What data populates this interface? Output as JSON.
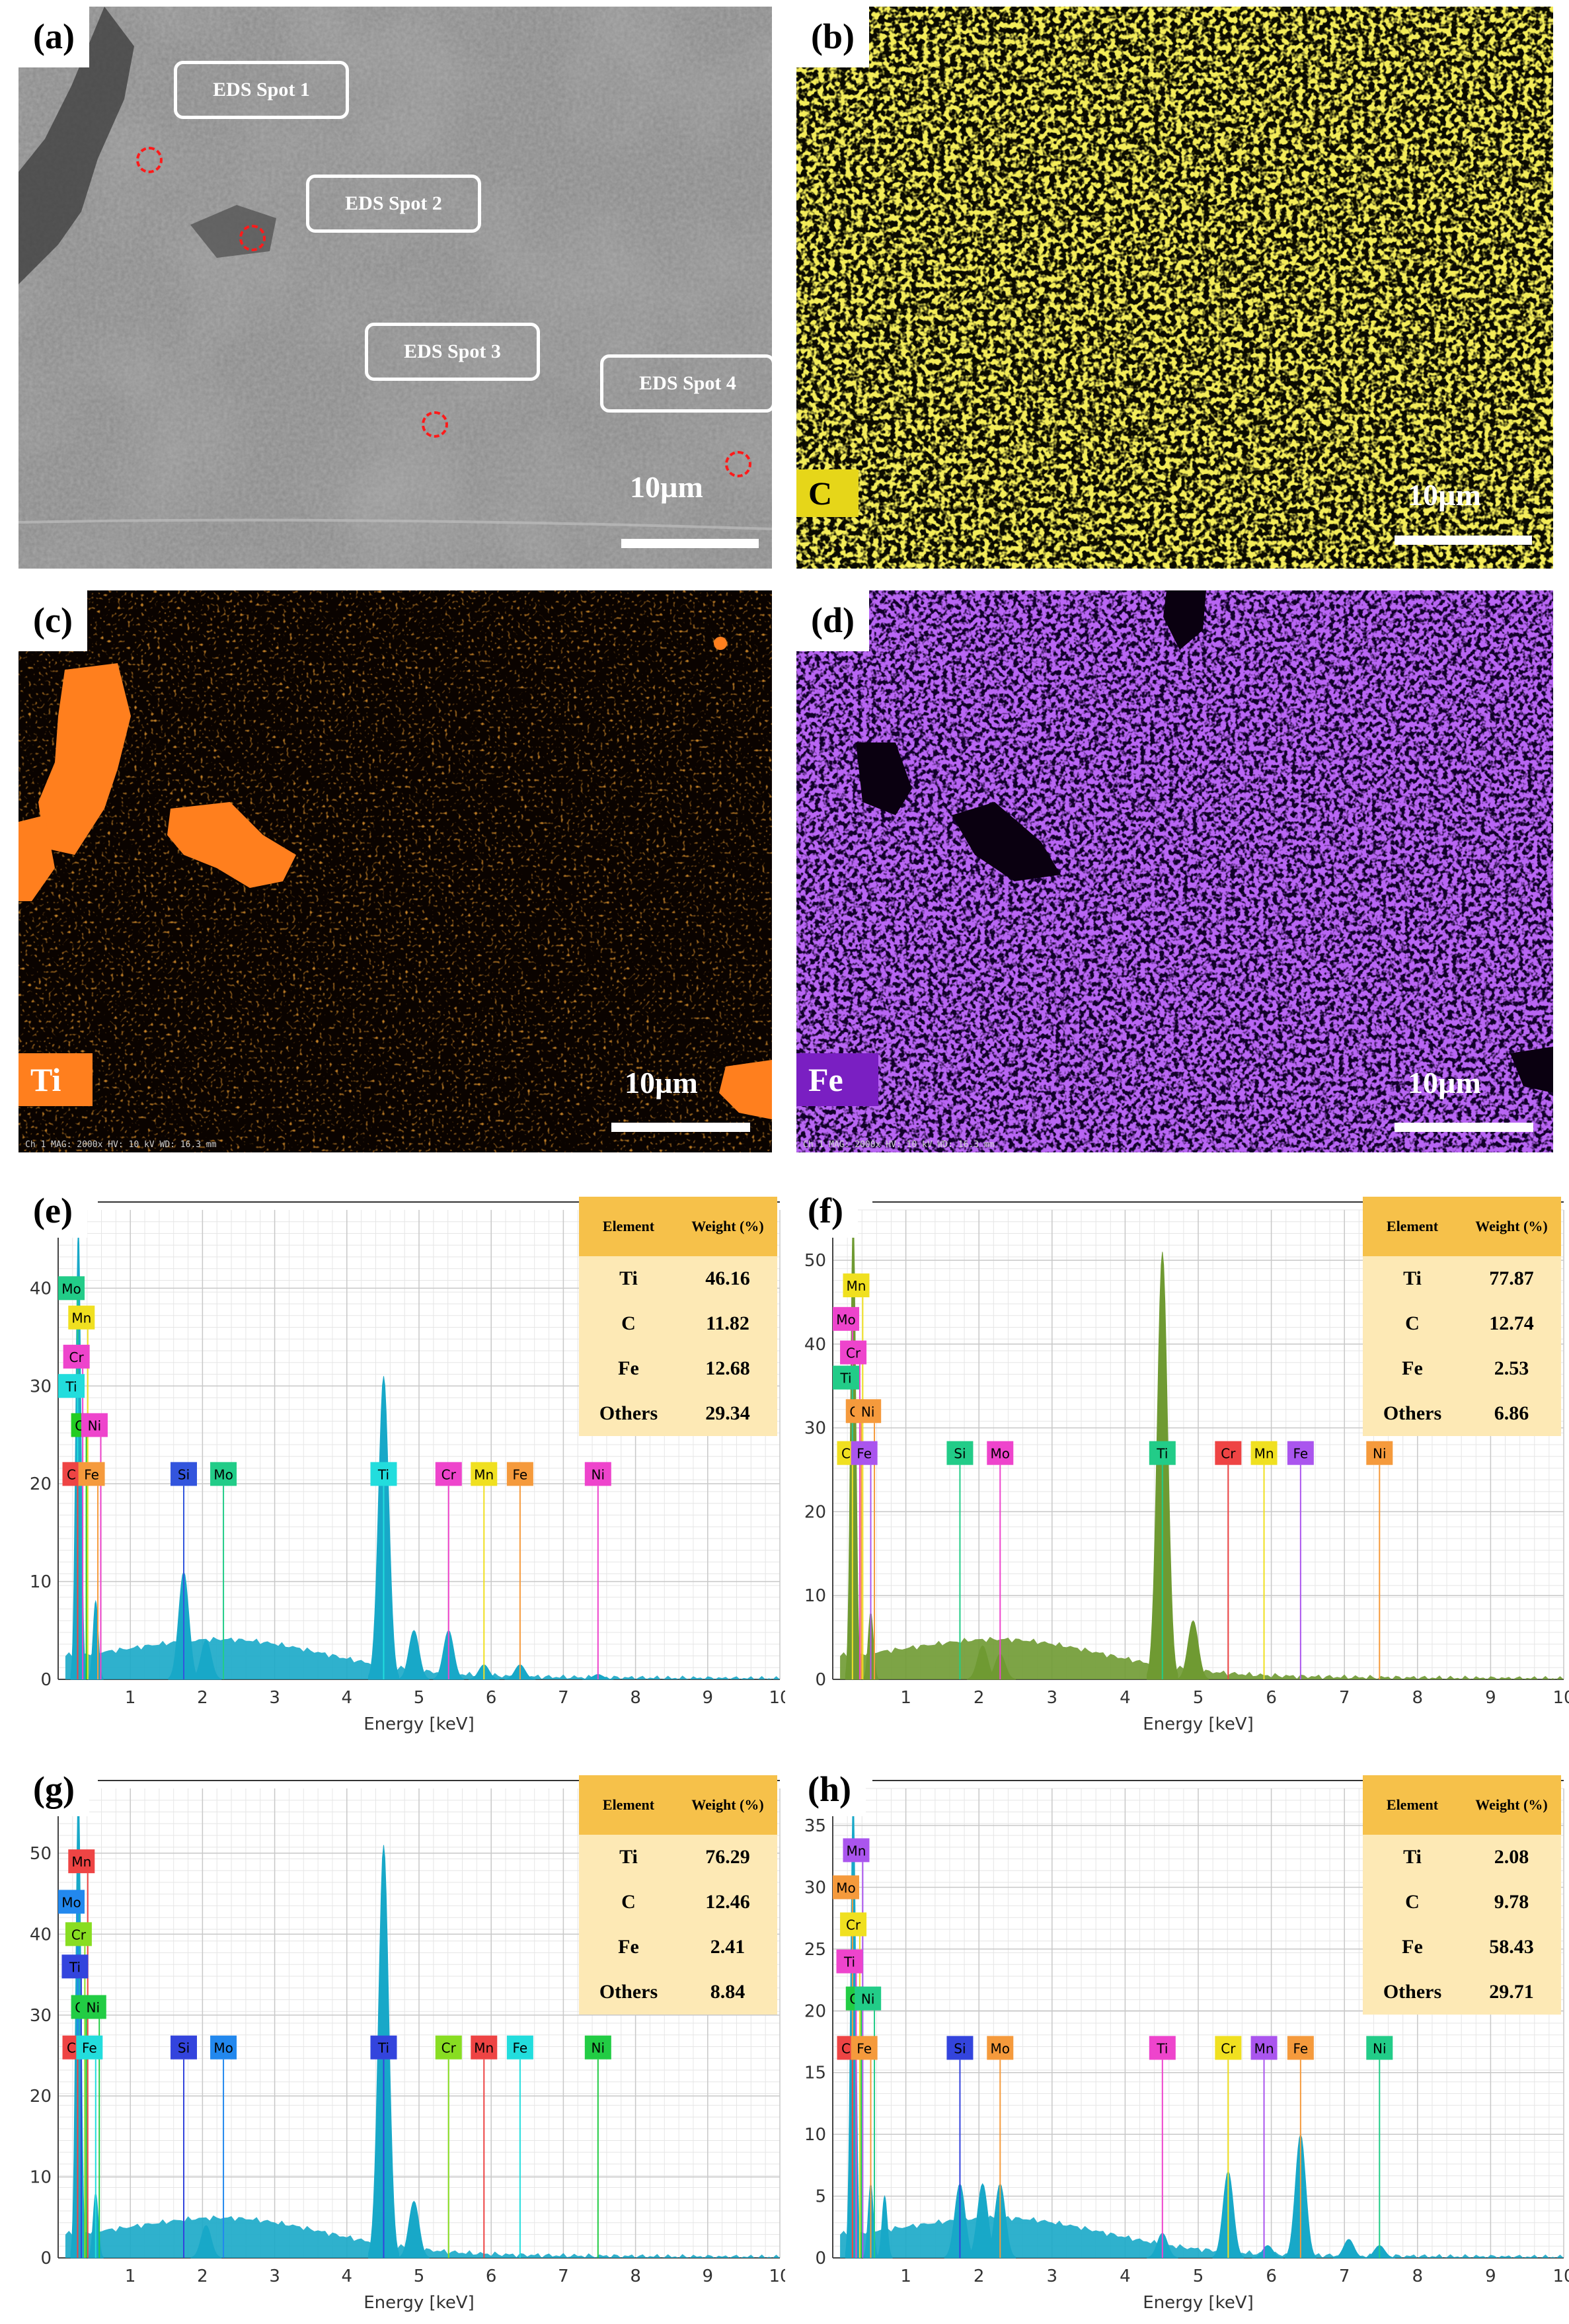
{
  "panels": {
    "a": {
      "label": "(a)",
      "scale_text": "10µm",
      "spots": [
        "EDS Spot 1",
        "EDS Spot 2",
        "EDS Spot 3",
        "EDS Spot 4"
      ]
    },
    "b": {
      "label": "(b)",
      "element": "C",
      "scale_text": "10µm",
      "map_color": "#e6d619",
      "tag_color": "#e6d619",
      "tag_text_color": "#000000"
    },
    "c": {
      "label": "(c)",
      "element": "Ti",
      "scale_text": "10µm",
      "map_color": "#ff7f1e",
      "tag_color": "#ff7f1e",
      "tag_text_color": "#ffffff",
      "status_bar": "Ch 1  MAG: 2000x  HV: 10 kV  WD: 16.3 mm"
    },
    "d": {
      "label": "(d)",
      "element": "Fe",
      "scale_text": "10µm",
      "map_color": "#7a22e6",
      "tag_color": "#7a1fc2",
      "tag_text_color": "#ffffff",
      "status_bar": "Ch 1  MAG: 2000x  HV: 10 kV  WD: 16.3 mm"
    }
  },
  "spectra": [
    {
      "label": "(e)",
      "color": "#18a8c8",
      "table": {
        "col1": "Element",
        "col2": "Weight (%)",
        "rows": [
          [
            "Ti",
            "46.16"
          ],
          [
            "C",
            "11.82"
          ],
          [
            "Fe",
            "12.68"
          ],
          [
            "Others",
            "29.34"
          ]
        ]
      }
    },
    {
      "label": "(f)",
      "color": "#6f9a32",
      "table": {
        "col1": "Element",
        "col2": "Weight (%)",
        "rows": [
          [
            "Ti",
            "77.87"
          ],
          [
            "C",
            "12.74"
          ],
          [
            "Fe",
            "2.53"
          ],
          [
            "Others",
            "6.86"
          ]
        ]
      }
    },
    {
      "label": "(g)",
      "color": "#18a8c8",
      "table": {
        "col1": "Element",
        "col2": "Weight (%)",
        "rows": [
          [
            "Ti",
            "76.29"
          ],
          [
            "C",
            "12.46"
          ],
          [
            "Fe",
            "2.41"
          ],
          [
            "Others",
            "8.84"
          ]
        ]
      }
    },
    {
      "label": "(h)",
      "color": "#18a8c8",
      "table": {
        "col1": "Element",
        "col2": "Weight (%)",
        "rows": [
          [
            "Ti",
            "2.08"
          ],
          [
            "C",
            "9.78"
          ],
          [
            "Fe",
            "58.43"
          ],
          [
            "Others",
            "29.71"
          ]
        ]
      }
    }
  ],
  "chart_data": [
    {
      "type": "area",
      "title": "(e)",
      "xlabel": "Energy [keV]",
      "ylabel": "",
      "xlim": [
        0,
        10
      ],
      "ylim": [
        0,
        48
      ],
      "xticks": [
        1,
        2,
        3,
        4,
        5,
        6,
        7,
        8,
        9,
        10
      ],
      "yticks": [
        0,
        10,
        20,
        30,
        40
      ],
      "peaks": [
        {
          "x": 0.28,
          "y": 46
        },
        {
          "x": 0.52,
          "y": 8
        },
        {
          "x": 1.74,
          "y": 11
        },
        {
          "x": 2.05,
          "y": 4
        },
        {
          "x": 4.51,
          "y": 31
        },
        {
          "x": 4.93,
          "y": 5
        },
        {
          "x": 5.41,
          "y": 5
        },
        {
          "x": 5.9,
          "y": 1.5
        },
        {
          "x": 6.4,
          "y": 1.5
        },
        {
          "x": 7.48,
          "y": 0.5
        }
      ],
      "element_lines": [
        {
          "label": "Mo",
          "x": 0.0,
          "y": 40,
          "color": "#22cc88"
        },
        {
          "label": "Mn",
          "x": 0.14,
          "y": 37,
          "color": "#f0e020"
        },
        {
          "label": "Cr",
          "x": 0.07,
          "y": 33,
          "color": "#ee44cc"
        },
        {
          "label": "Ti",
          "x": 0.0,
          "y": 30,
          "color": "#22dddd"
        },
        {
          "label": "O",
          "x": 0.12,
          "y": 26,
          "color": "#22cc22"
        },
        {
          "label": "Ni",
          "x": 0.32,
          "y": 26,
          "color": "#ee44cc"
        },
        {
          "label": "C",
          "x": 0.0,
          "y": 21,
          "color": "#ee4444"
        },
        {
          "label": "Fe",
          "x": 0.28,
          "y": 21,
          "color": "#f59a3c"
        },
        {
          "label": "Si",
          "x": 1.74,
          "y": 21,
          "color": "#3355dd"
        },
        {
          "label": "Mo",
          "x": 2.29,
          "y": 21,
          "color": "#22cc88"
        },
        {
          "label": "Ti",
          "x": 4.51,
          "y": 21,
          "color": "#22dddd"
        },
        {
          "label": "Cr",
          "x": 5.41,
          "y": 21,
          "color": "#ee44cc"
        },
        {
          "label": "Mn",
          "x": 5.9,
          "y": 21,
          "color": "#f0e020"
        },
        {
          "label": "Fe",
          "x": 6.4,
          "y": 21,
          "color": "#f59a3c"
        },
        {
          "label": "Ni",
          "x": 7.48,
          "y": 21,
          "color": "#ee44cc"
        }
      ]
    },
    {
      "type": "area",
      "title": "(f)",
      "xlabel": "Energy [keV]",
      "ylabel": "",
      "xlim": [
        0,
        10
      ],
      "ylim": [
        0,
        56
      ],
      "xticks": [
        1,
        2,
        3,
        4,
        5,
        6,
        7,
        8,
        9,
        10
      ],
      "yticks": [
        0,
        10,
        20,
        30,
        40,
        50
      ],
      "peaks": [
        {
          "x": 0.28,
          "y": 55
        },
        {
          "x": 0.52,
          "y": 8
        },
        {
          "x": 2.05,
          "y": 4
        },
        {
          "x": 4.51,
          "y": 51
        },
        {
          "x": 4.93,
          "y": 7
        },
        {
          "x": 2.29,
          "y": 3
        }
      ],
      "element_lines": [
        {
          "label": "Mn",
          "x": 0.14,
          "y": 47,
          "color": "#f0e020"
        },
        {
          "label": "Mo",
          "x": 0.0,
          "y": 43,
          "color": "#ee44cc"
        },
        {
          "label": "Cr",
          "x": 0.1,
          "y": 39,
          "color": "#ee44cc"
        },
        {
          "label": "Ti",
          "x": 0.0,
          "y": 36,
          "color": "#22cc88"
        },
        {
          "label": "O",
          "x": 0.12,
          "y": 32,
          "color": "#f59a3c"
        },
        {
          "label": "Ni",
          "x": 0.3,
          "y": 32,
          "color": "#f59a3c"
        },
        {
          "label": "C",
          "x": 0.0,
          "y": 27,
          "color": "#f0e020"
        },
        {
          "label": "Fe",
          "x": 0.25,
          "y": 27,
          "color": "#aa55ee"
        },
        {
          "label": "Si",
          "x": 1.74,
          "y": 27,
          "color": "#22cc88"
        },
        {
          "label": "Mo",
          "x": 2.29,
          "y": 27,
          "color": "#ee44cc"
        },
        {
          "label": "Ti",
          "x": 4.51,
          "y": 27,
          "color": "#22cc88"
        },
        {
          "label": "Cr",
          "x": 5.41,
          "y": 27,
          "color": "#ee4444"
        },
        {
          "label": "Mn",
          "x": 5.9,
          "y": 27,
          "color": "#f0e020"
        },
        {
          "label": "Fe",
          "x": 6.4,
          "y": 27,
          "color": "#aa55ee"
        },
        {
          "label": "Ni",
          "x": 7.48,
          "y": 27,
          "color": "#f59a3c"
        }
      ]
    },
    {
      "type": "area",
      "title": "(g)",
      "xlabel": "Energy [keV]",
      "ylabel": "",
      "xlim": [
        0,
        10
      ],
      "ylim": [
        0,
        58
      ],
      "xticks": [
        1,
        2,
        3,
        4,
        5,
        6,
        7,
        8,
        9,
        10
      ],
      "yticks": [
        0,
        10,
        20,
        30,
        40,
        50
      ],
      "peaks": [
        {
          "x": 0.28,
          "y": 58
        },
        {
          "x": 0.52,
          "y": 8
        },
        {
          "x": 2.05,
          "y": 4
        },
        {
          "x": 4.51,
          "y": 51
        },
        {
          "x": 4.93,
          "y": 7
        }
      ],
      "element_lines": [
        {
          "label": "Mn",
          "x": 0.14,
          "y": 49,
          "color": "#ee4444"
        },
        {
          "label": "Mo",
          "x": 0.0,
          "y": 44,
          "color": "#2288ee"
        },
        {
          "label": "Cr",
          "x": 0.1,
          "y": 40,
          "color": "#88dd22"
        },
        {
          "label": "Ti",
          "x": 0.05,
          "y": 36,
          "color": "#3344dd"
        },
        {
          "label": "O",
          "x": 0.12,
          "y": 31,
          "color": "#22cc44"
        },
        {
          "label": "Ni",
          "x": 0.3,
          "y": 31,
          "color": "#22cc44"
        },
        {
          "label": "C",
          "x": 0.0,
          "y": 26,
          "color": "#ee4444"
        },
        {
          "label": "Fe",
          "x": 0.25,
          "y": 26,
          "color": "#22dddd"
        },
        {
          "label": "Si",
          "x": 1.74,
          "y": 26,
          "color": "#3344dd"
        },
        {
          "label": "Mo",
          "x": 2.29,
          "y": 26,
          "color": "#2288ee"
        },
        {
          "label": "Ti",
          "x": 4.51,
          "y": 26,
          "color": "#3344dd"
        },
        {
          "label": "Cr",
          "x": 5.41,
          "y": 26,
          "color": "#88dd22"
        },
        {
          "label": "Mn",
          "x": 5.9,
          "y": 26,
          "color": "#ee4444"
        },
        {
          "label": "Fe",
          "x": 6.4,
          "y": 26,
          "color": "#22dddd"
        },
        {
          "label": "Ni",
          "x": 7.48,
          "y": 26,
          "color": "#22cc44"
        }
      ]
    },
    {
      "type": "area",
      "title": "(h)",
      "xlabel": "Energy [keV]",
      "ylabel": "",
      "xlim": [
        0,
        10
      ],
      "ylim": [
        0,
        38
      ],
      "xticks": [
        1,
        2,
        3,
        4,
        5,
        6,
        7,
        8,
        9,
        10
      ],
      "yticks": [
        0,
        5,
        10,
        15,
        20,
        25,
        30,
        35
      ],
      "peaks": [
        {
          "x": 0.28,
          "y": 37
        },
        {
          "x": 0.52,
          "y": 6
        },
        {
          "x": 0.71,
          "y": 5
        },
        {
          "x": 1.74,
          "y": 6
        },
        {
          "x": 2.05,
          "y": 6
        },
        {
          "x": 2.29,
          "y": 6
        },
        {
          "x": 4.51,
          "y": 2
        },
        {
          "x": 5.41,
          "y": 7
        },
        {
          "x": 5.95,
          "y": 1
        },
        {
          "x": 6.4,
          "y": 10
        },
        {
          "x": 7.06,
          "y": 1.5
        },
        {
          "x": 7.48,
          "y": 1
        }
      ],
      "element_lines": [
        {
          "label": "Mn",
          "x": 0.14,
          "y": 33,
          "color": "#aa55ee"
        },
        {
          "label": "Mo",
          "x": 0.0,
          "y": 30,
          "color": "#f59a3c"
        },
        {
          "label": "Cr",
          "x": 0.1,
          "y": 27,
          "color": "#f0e020"
        },
        {
          "label": "Ti",
          "x": 0.05,
          "y": 24,
          "color": "#ee44cc"
        },
        {
          "label": "O",
          "x": 0.12,
          "y": 21,
          "color": "#22cc44"
        },
        {
          "label": "Ni",
          "x": 0.3,
          "y": 21,
          "color": "#22cc88"
        },
        {
          "label": "C",
          "x": 0.0,
          "y": 17,
          "color": "#ee4444"
        },
        {
          "label": "Fe",
          "x": 0.25,
          "y": 17,
          "color": "#f59a3c"
        },
        {
          "label": "Si",
          "x": 1.74,
          "y": 17,
          "color": "#3344dd"
        },
        {
          "label": "Mo",
          "x": 2.29,
          "y": 17,
          "color": "#f59a3c"
        },
        {
          "label": "Ti",
          "x": 4.51,
          "y": 17,
          "color": "#ee44cc"
        },
        {
          "label": "Cr",
          "x": 5.41,
          "y": 17,
          "color": "#f0e020"
        },
        {
          "label": "Mn",
          "x": 5.9,
          "y": 17,
          "color": "#aa55ee"
        },
        {
          "label": "Fe",
          "x": 6.4,
          "y": 17,
          "color": "#f59a3c"
        },
        {
          "label": "Ni",
          "x": 7.48,
          "y": 17,
          "color": "#22cc88"
        }
      ]
    }
  ]
}
